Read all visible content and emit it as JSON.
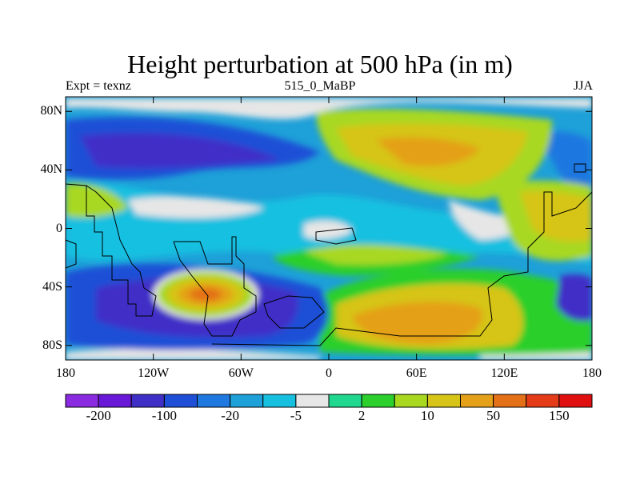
{
  "title": "Height perturbation at 500 hPa (in m)",
  "subtitle_left": "Expt = texnz",
  "subtitle_center": "515_0_MaBP",
  "subtitle_right": "JJA",
  "lat_ticks": [
    "80N",
    "40N",
    "0",
    "40S",
    "80S"
  ],
  "lon_ticks": [
    "180",
    "120W",
    "60W",
    "0",
    "60E",
    "120E",
    "180"
  ],
  "colorbar": {
    "colors": [
      "#8a2be2",
      "#6a18d8",
      "#3f2fc7",
      "#1f4fd6",
      "#1e78e0",
      "#1ea0d8",
      "#18c0e0",
      "#e6e6e6",
      "#20d890",
      "#2ccf2c",
      "#a8d820",
      "#d6c418",
      "#e4a018",
      "#e47018",
      "#e43c18",
      "#e01010"
    ],
    "labels": [
      "-200",
      "-100",
      "-20",
      "-5",
      "2",
      "10",
      "50",
      "150"
    ]
  },
  "palette": {
    "neg3": "#3f2fc7",
    "neg2": "#1f4fd6",
    "neg1": "#1e78e0",
    "neg0": "#1ea0d8",
    "neg00": "#18c0e0",
    "zero": "#e6e6e6",
    "pos0": "#20d890",
    "pos1": "#2ccf2c",
    "pos2": "#a8d820",
    "pos3": "#d6c418",
    "pos4": "#e4a018",
    "pos5": "#e47018"
  }
}
